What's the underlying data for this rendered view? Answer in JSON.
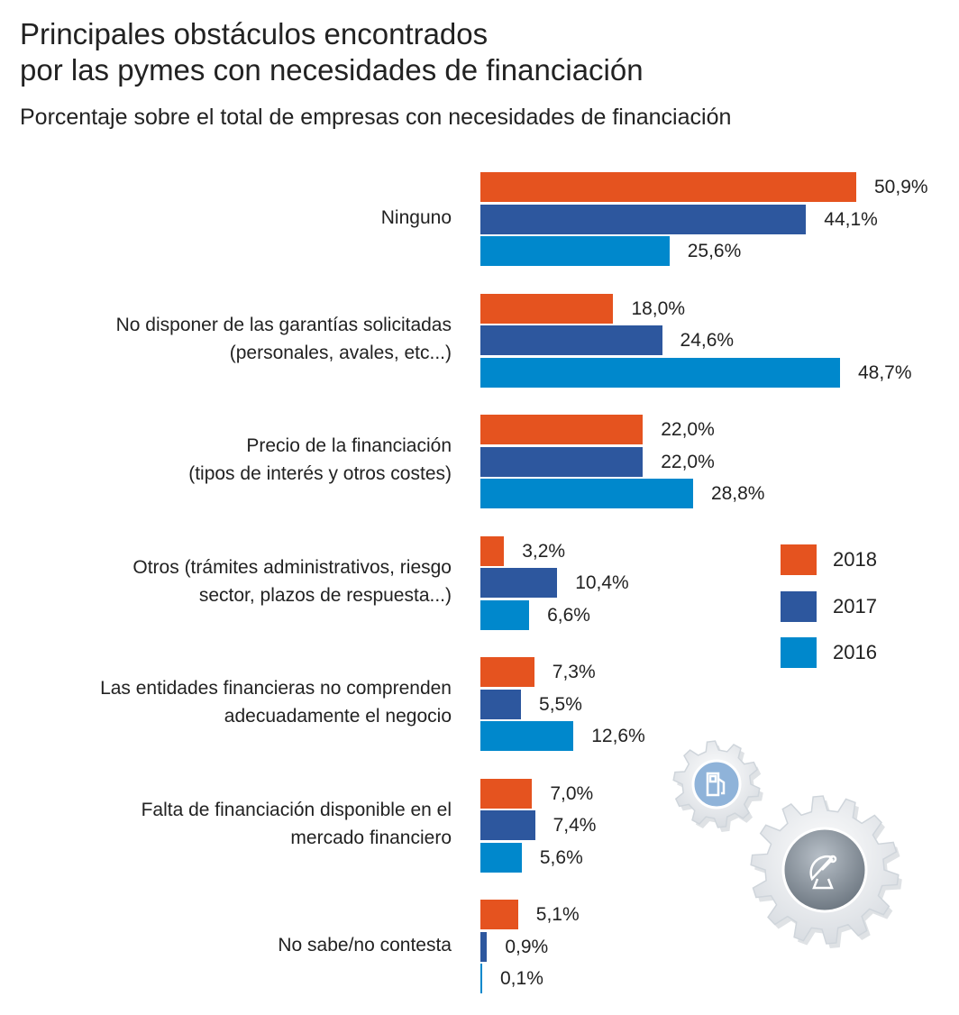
{
  "title_lines": [
    "Principales obstáculos encontrados",
    "por las pymes con necesidades de financiación"
  ],
  "subtitle": "Porcentaje sobre el total de empresas con necesidades de financiación",
  "colors": {
    "2018": "#e5531f",
    "2017": "#2d579e",
    "2016": "#0088cc"
  },
  "icons": [
    "gear-fuel-icon",
    "gear-satellite-icon"
  ],
  "chart_data": {
    "type": "bar",
    "orientation": "horizontal",
    "title": "Principales obstáculos encontrados por las pymes con necesidades de financiación",
    "subtitle": "Porcentaje sobre el total de empresas con necesidades de financiación",
    "categories": [
      [
        "Ninguno"
      ],
      [
        "No disponer de las garantías solicitadas",
        "(personales, avales, etc...)"
      ],
      [
        "Precio de la financiación",
        "(tipos de interés y otros costes)"
      ],
      [
        "Otros (trámites administrativos, riesgo",
        "sector, plazos de respuesta...)"
      ],
      [
        "Las entidades financieras no comprenden",
        "adecuadamente el negocio"
      ],
      [
        "Falta de financiación disponible en el",
        "mercado financiero"
      ],
      [
        "No sabe/no contesta"
      ]
    ],
    "series": [
      {
        "name": "2018",
        "values": [
          50.9,
          18.0,
          22.0,
          3.2,
          7.3,
          7.0,
          5.1
        ],
        "labels": [
          "50,9%",
          "18,0%",
          "22,0%",
          "3,2%",
          "7,3%",
          "7,0%",
          "5,1%"
        ]
      },
      {
        "name": "2017",
        "values": [
          44.1,
          24.6,
          22.0,
          10.4,
          5.5,
          7.4,
          0.9
        ],
        "labels": [
          "44,1%",
          "24,6%",
          "22,0%",
          "10,4%",
          "5,5%",
          "7,4%",
          "0,9%"
        ]
      },
      {
        "name": "2016",
        "values": [
          25.6,
          48.7,
          28.8,
          6.6,
          12.6,
          5.6,
          0.1
        ],
        "labels": [
          "25,6%",
          "48,7%",
          "28,8%",
          "6,6%",
          "12,6%",
          "5,6%",
          "0,1%"
        ]
      }
    ],
    "xlim": [
      0,
      100
    ],
    "grid": false,
    "legend": {
      "placement": "right",
      "entries": [
        "2018",
        "2017",
        "2016"
      ]
    }
  }
}
